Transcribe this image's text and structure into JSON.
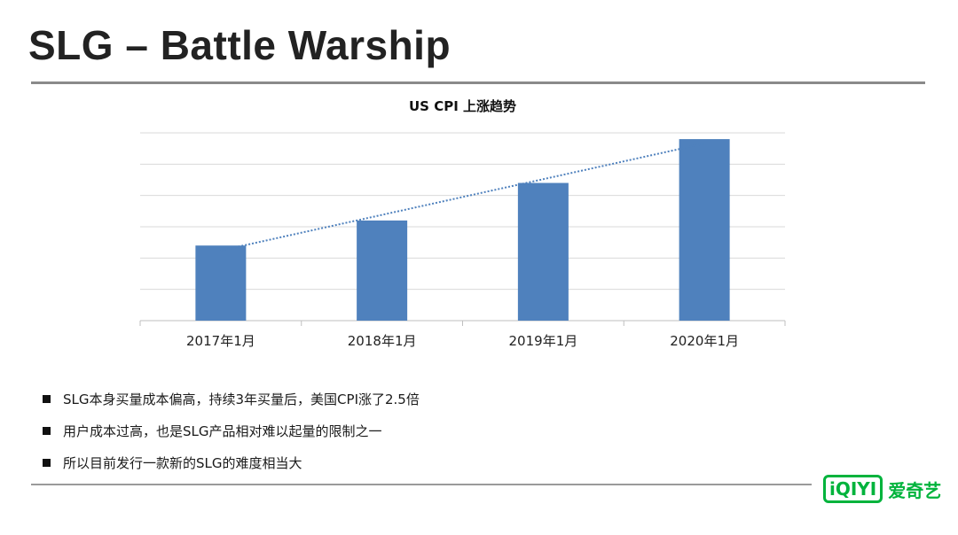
{
  "slide": {
    "title": "SLG – Battle Warship"
  },
  "chart_data": {
    "type": "bar",
    "title": "US CPI   上涨趋势",
    "categories": [
      "2017年1月",
      "2018年1月",
      "2019年1月",
      "2020年1月"
    ],
    "values": [
      2.4,
      3.2,
      4.4,
      5.8
    ],
    "ylim": [
      0,
      6
    ],
    "grid": true,
    "trendline": true,
    "bar_color": "#4f81bd",
    "trend_color": "#4f81bd"
  },
  "bullets": [
    "SLG本身买量成本偏高，持续3年买量后，美国CPI涨了2.5倍",
    "用户成本过高，也是SLG产品相对难以起量的限制之一",
    "所以目前发行一款新的SLG的难度相当大"
  ],
  "logo": {
    "mark": "iQIYI",
    "text": "爱奇艺",
    "color": "#00b33c"
  }
}
